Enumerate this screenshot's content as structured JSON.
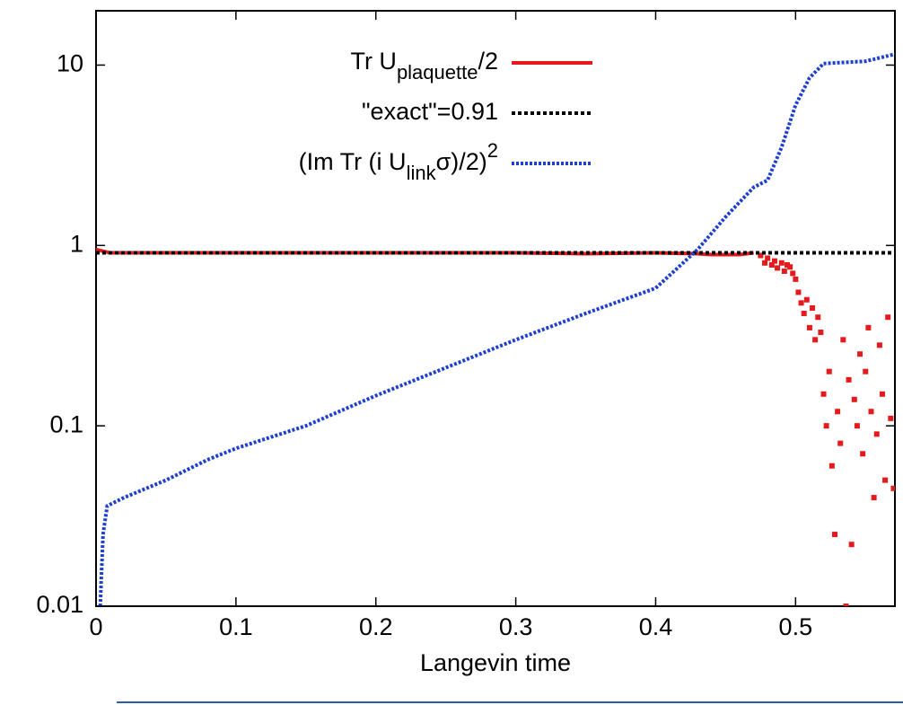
{
  "chart_data": {
    "type": "line",
    "log_y": true,
    "x_label": "Langevin time",
    "xlim": [
      0,
      0.571
    ],
    "xticks": [
      0,
      0.1,
      0.2,
      0.3,
      0.4,
      0.5
    ],
    "ylim": [
      0.01,
      20
    ],
    "yticks": [
      0.01,
      0.1,
      1,
      10
    ],
    "legend": "top",
    "series": [
      {
        "name": [
          {
            "text": "Tr U"
          },
          {
            "text": "plaquette",
            "shift": "sub"
          },
          {
            "text": "/2"
          }
        ],
        "color": "#e41a1c",
        "style": "solid",
        "x": [
          0,
          0.01,
          0.05,
          0.1,
          0.15,
          0.2,
          0.25,
          0.3,
          0.35,
          0.4,
          0.43,
          0.44,
          0.46,
          0.47
        ],
        "values": [
          0.95,
          0.91,
          0.91,
          0.91,
          0.91,
          0.91,
          0.91,
          0.91,
          0.9,
          0.91,
          0.9,
          0.89,
          0.89,
          0.91
        ],
        "points": {
          "x": [
            0.475,
            0.478,
            0.48,
            0.483,
            0.485,
            0.487,
            0.49,
            0.492,
            0.494,
            0.496,
            0.498,
            0.5,
            0.502,
            0.504,
            0.506,
            0.508,
            0.51,
            0.512,
            0.514,
            0.516,
            0.518,
            0.52,
            0.522,
            0.524,
            0.526,
            0.528,
            0.53,
            0.532,
            0.534,
            0.536,
            0.538,
            0.54,
            0.542,
            0.544,
            0.546,
            0.548,
            0.55,
            0.552,
            0.554,
            0.556,
            0.558,
            0.56,
            0.562,
            0.564,
            0.566,
            0.568,
            0.57
          ],
          "values": [
            0.88,
            0.8,
            0.85,
            0.78,
            0.82,
            0.75,
            0.8,
            0.72,
            0.78,
            0.76,
            0.7,
            0.65,
            0.55,
            0.48,
            0.42,
            0.5,
            0.35,
            0.45,
            0.3,
            0.4,
            0.33,
            0.15,
            0.1,
            0.2,
            0.06,
            0.025,
            0.12,
            0.08,
            0.3,
            0.01,
            0.18,
            0.022,
            0.14,
            0.1,
            0.25,
            0.07,
            0.2,
            0.35,
            0.12,
            0.04,
            0.09,
            0.28,
            0.15,
            0.05,
            0.4,
            0.11,
            0.045
          ]
        }
      },
      {
        "name": [
          {
            "text": "\"exact\"=0.91"
          }
        ],
        "color": "#000000",
        "style": "dashed",
        "x": [
          0,
          0.571
        ],
        "values": [
          0.91,
          0.91
        ]
      },
      {
        "name": [
          {
            "text": "(Im Tr (i U"
          },
          {
            "text": "link",
            "shift": "sub"
          },
          {
            "text": "σ)/2)"
          },
          {
            "text": "2",
            "shift": "super"
          }
        ],
        "color": "#1f3fcf",
        "style": "dotted",
        "x": [
          0.003,
          0.005,
          0.008,
          0.02,
          0.05,
          0.08,
          0.1,
          0.15,
          0.2,
          0.25,
          0.3,
          0.35,
          0.4,
          0.43,
          0.45,
          0.47,
          0.48,
          0.49,
          0.5,
          0.51,
          0.52,
          0.55,
          0.571
        ],
        "values": [
          0.01,
          0.025,
          0.036,
          0.04,
          0.05,
          0.065,
          0.075,
          0.1,
          0.147,
          0.21,
          0.3,
          0.42,
          0.58,
          0.95,
          1.44,
          2.1,
          2.3,
          3.5,
          6.0,
          8.5,
          10.2,
          10.5,
          11.5
        ]
      }
    ]
  }
}
